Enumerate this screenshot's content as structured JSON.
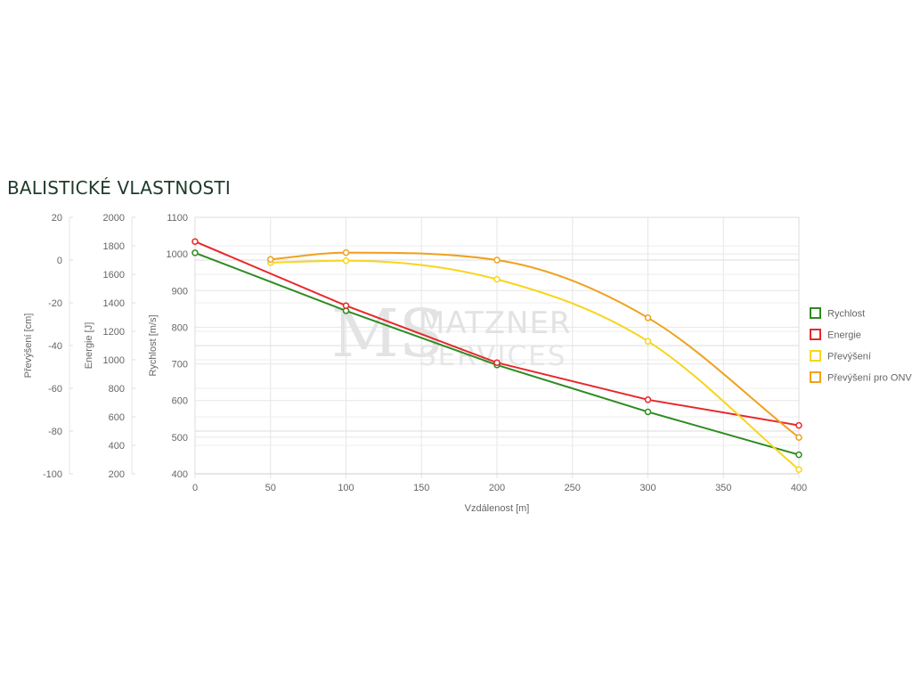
{
  "title": "BALISTICKÉ VLASTNOSTI",
  "watermark": {
    "monogram": "MS",
    "line1": "MATZNER",
    "line2": "SERVICES"
  },
  "chart_data": {
    "type": "line",
    "xlabel": "Vzdálenost [m]",
    "x_ticks": [
      "0",
      "50",
      "100",
      "150",
      "200",
      "250",
      "300",
      "350",
      "400"
    ],
    "xlim": [
      0,
      400
    ],
    "grid": true,
    "legend_position": "right",
    "axes": [
      {
        "id": "prevyseni",
        "label": "Převýšení [cm]",
        "ylim": [
          -100,
          20
        ],
        "ticks": [
          "20",
          "0",
          "-20",
          "-40",
          "-60",
          "-80",
          "-100"
        ]
      },
      {
        "id": "energie",
        "label": "Energie [J]",
        "ylim": [
          200,
          2000
        ],
        "ticks": [
          "2000",
          "1800",
          "1600",
          "1400",
          "1200",
          "1000",
          "800",
          "600",
          "400",
          "200"
        ]
      },
      {
        "id": "rychlost",
        "label": "Rychlost [m/s]",
        "ylim": [
          400,
          1100
        ],
        "ticks": [
          "1100",
          "1000",
          "900",
          "800",
          "700",
          "600",
          "500",
          "400"
        ]
      }
    ],
    "series": [
      {
        "name": "Rychlost",
        "axis": "rychlost",
        "color": "#2e8b22",
        "curve": "linear",
        "x": [
          0,
          100,
          200,
          300,
          400
        ],
        "y": [
          1003,
          845,
          697,
          569,
          452
        ]
      },
      {
        "name": "Energie",
        "axis": "energie",
        "color": "#e8282b",
        "curve": "linear",
        "x": [
          0,
          100,
          200,
          300,
          400
        ],
        "y": [
          1830,
          1380,
          980,
          720,
          540
        ]
      },
      {
        "name": "Převýšení",
        "axis": "prevyseni",
        "color": "#f7d51d",
        "curve": "smooth",
        "x": [
          50,
          100,
          200,
          300,
          400
        ],
        "y": [
          -1.2,
          -0.3,
          -9,
          -38,
          -98
        ]
      },
      {
        "name": "Převýšení pro ONV",
        "axis": "prevyseni",
        "color": "#f0a11e",
        "curve": "smooth",
        "x": [
          50,
          100,
          200,
          300,
          400
        ],
        "y": [
          0.3,
          3.5,
          0,
          -27,
          -83
        ]
      }
    ]
  }
}
